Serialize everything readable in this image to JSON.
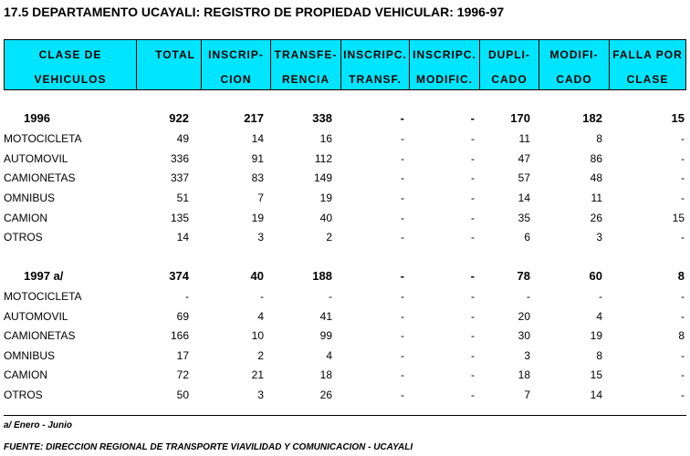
{
  "title": "17.5  DEPARTAMENTO UCAYALI: REGISTRO DE PROPIEDAD VEHICULAR: 1996-97",
  "columns": [
    {
      "line1": "CLASE  DE",
      "line2": "VEHICULOS"
    },
    {
      "line1": "TOTAL",
      "line2": ""
    },
    {
      "line1": "INSCRIP-",
      "line2": "CION"
    },
    {
      "line1": "TRANSFE-",
      "line2": "RENCIA"
    },
    {
      "line1": "INSCRIPC.",
      "line2": "TRANSF."
    },
    {
      "line1": "INSCRIPC.",
      "line2": "MODIFIC."
    },
    {
      "line1": "DUPLI-",
      "line2": "CADO"
    },
    {
      "line1": "MODIFI-",
      "line2": "CADO"
    },
    {
      "line1": "FALLA POR",
      "line2": "CLASE"
    }
  ],
  "rows": [
    {
      "label": "1996",
      "bold": true,
      "values": [
        "922",
        "217",
        "338",
        "-",
        "-",
        "170",
        "182",
        "15"
      ]
    },
    {
      "label": "MOTOCICLETA",
      "values": [
        "49",
        "14",
        "16",
        "-",
        "-",
        "11",
        "8",
        "-"
      ]
    },
    {
      "label": "AUTOMOVIL",
      "values": [
        "336",
        "91",
        "112",
        "-",
        "-",
        "47",
        "86",
        "-"
      ]
    },
    {
      "label": "CAMIONETAS",
      "values": [
        "337",
        "83",
        "149",
        "-",
        "-",
        "57",
        "48",
        "-"
      ]
    },
    {
      "label": "OMNIBUS",
      "values": [
        "51",
        "7",
        "19",
        "-",
        "-",
        "14",
        "11",
        "-"
      ]
    },
    {
      "label": "CAMION",
      "values": [
        "135",
        "19",
        "40",
        "-",
        "-",
        "35",
        "26",
        "15"
      ]
    },
    {
      "label": "OTROS",
      "values": [
        "14",
        "3",
        "2",
        "-",
        "-",
        "6",
        "3",
        "-"
      ]
    },
    {
      "label": "1997 a/",
      "bold": true,
      "values": [
        "374",
        "40",
        "188",
        "-",
        "-",
        "78",
        "60",
        "8"
      ]
    },
    {
      "label": "MOTOCICLETA",
      "values": [
        "-",
        "-",
        "-",
        "-",
        "-",
        "-",
        "-",
        "-"
      ]
    },
    {
      "label": "AUTOMOVIL",
      "values": [
        "69",
        "4",
        "41",
        "-",
        "-",
        "20",
        "4",
        "-"
      ]
    },
    {
      "label": "CAMIONETAS",
      "values": [
        "166",
        "10",
        "99",
        "-",
        "-",
        "30",
        "19",
        "8"
      ]
    },
    {
      "label": "OMNIBUS",
      "values": [
        "17",
        "2",
        "4",
        "-",
        "-",
        "3",
        "8",
        "-"
      ]
    },
    {
      "label": "CAMION",
      "values": [
        "72",
        "21",
        "18",
        "-",
        "-",
        "18",
        "15",
        "-"
      ]
    },
    {
      "label": "OTROS",
      "values": [
        "50",
        "3",
        "26",
        "-",
        "-",
        "7",
        "14",
        "-"
      ]
    }
  ],
  "footnote": "a/  Enero - Junio",
  "source": "FUENTE: DIRECCION REGIONAL DE TRANSPORTE VIAVILIDAD Y COMUNICACION - UCAYALI"
}
